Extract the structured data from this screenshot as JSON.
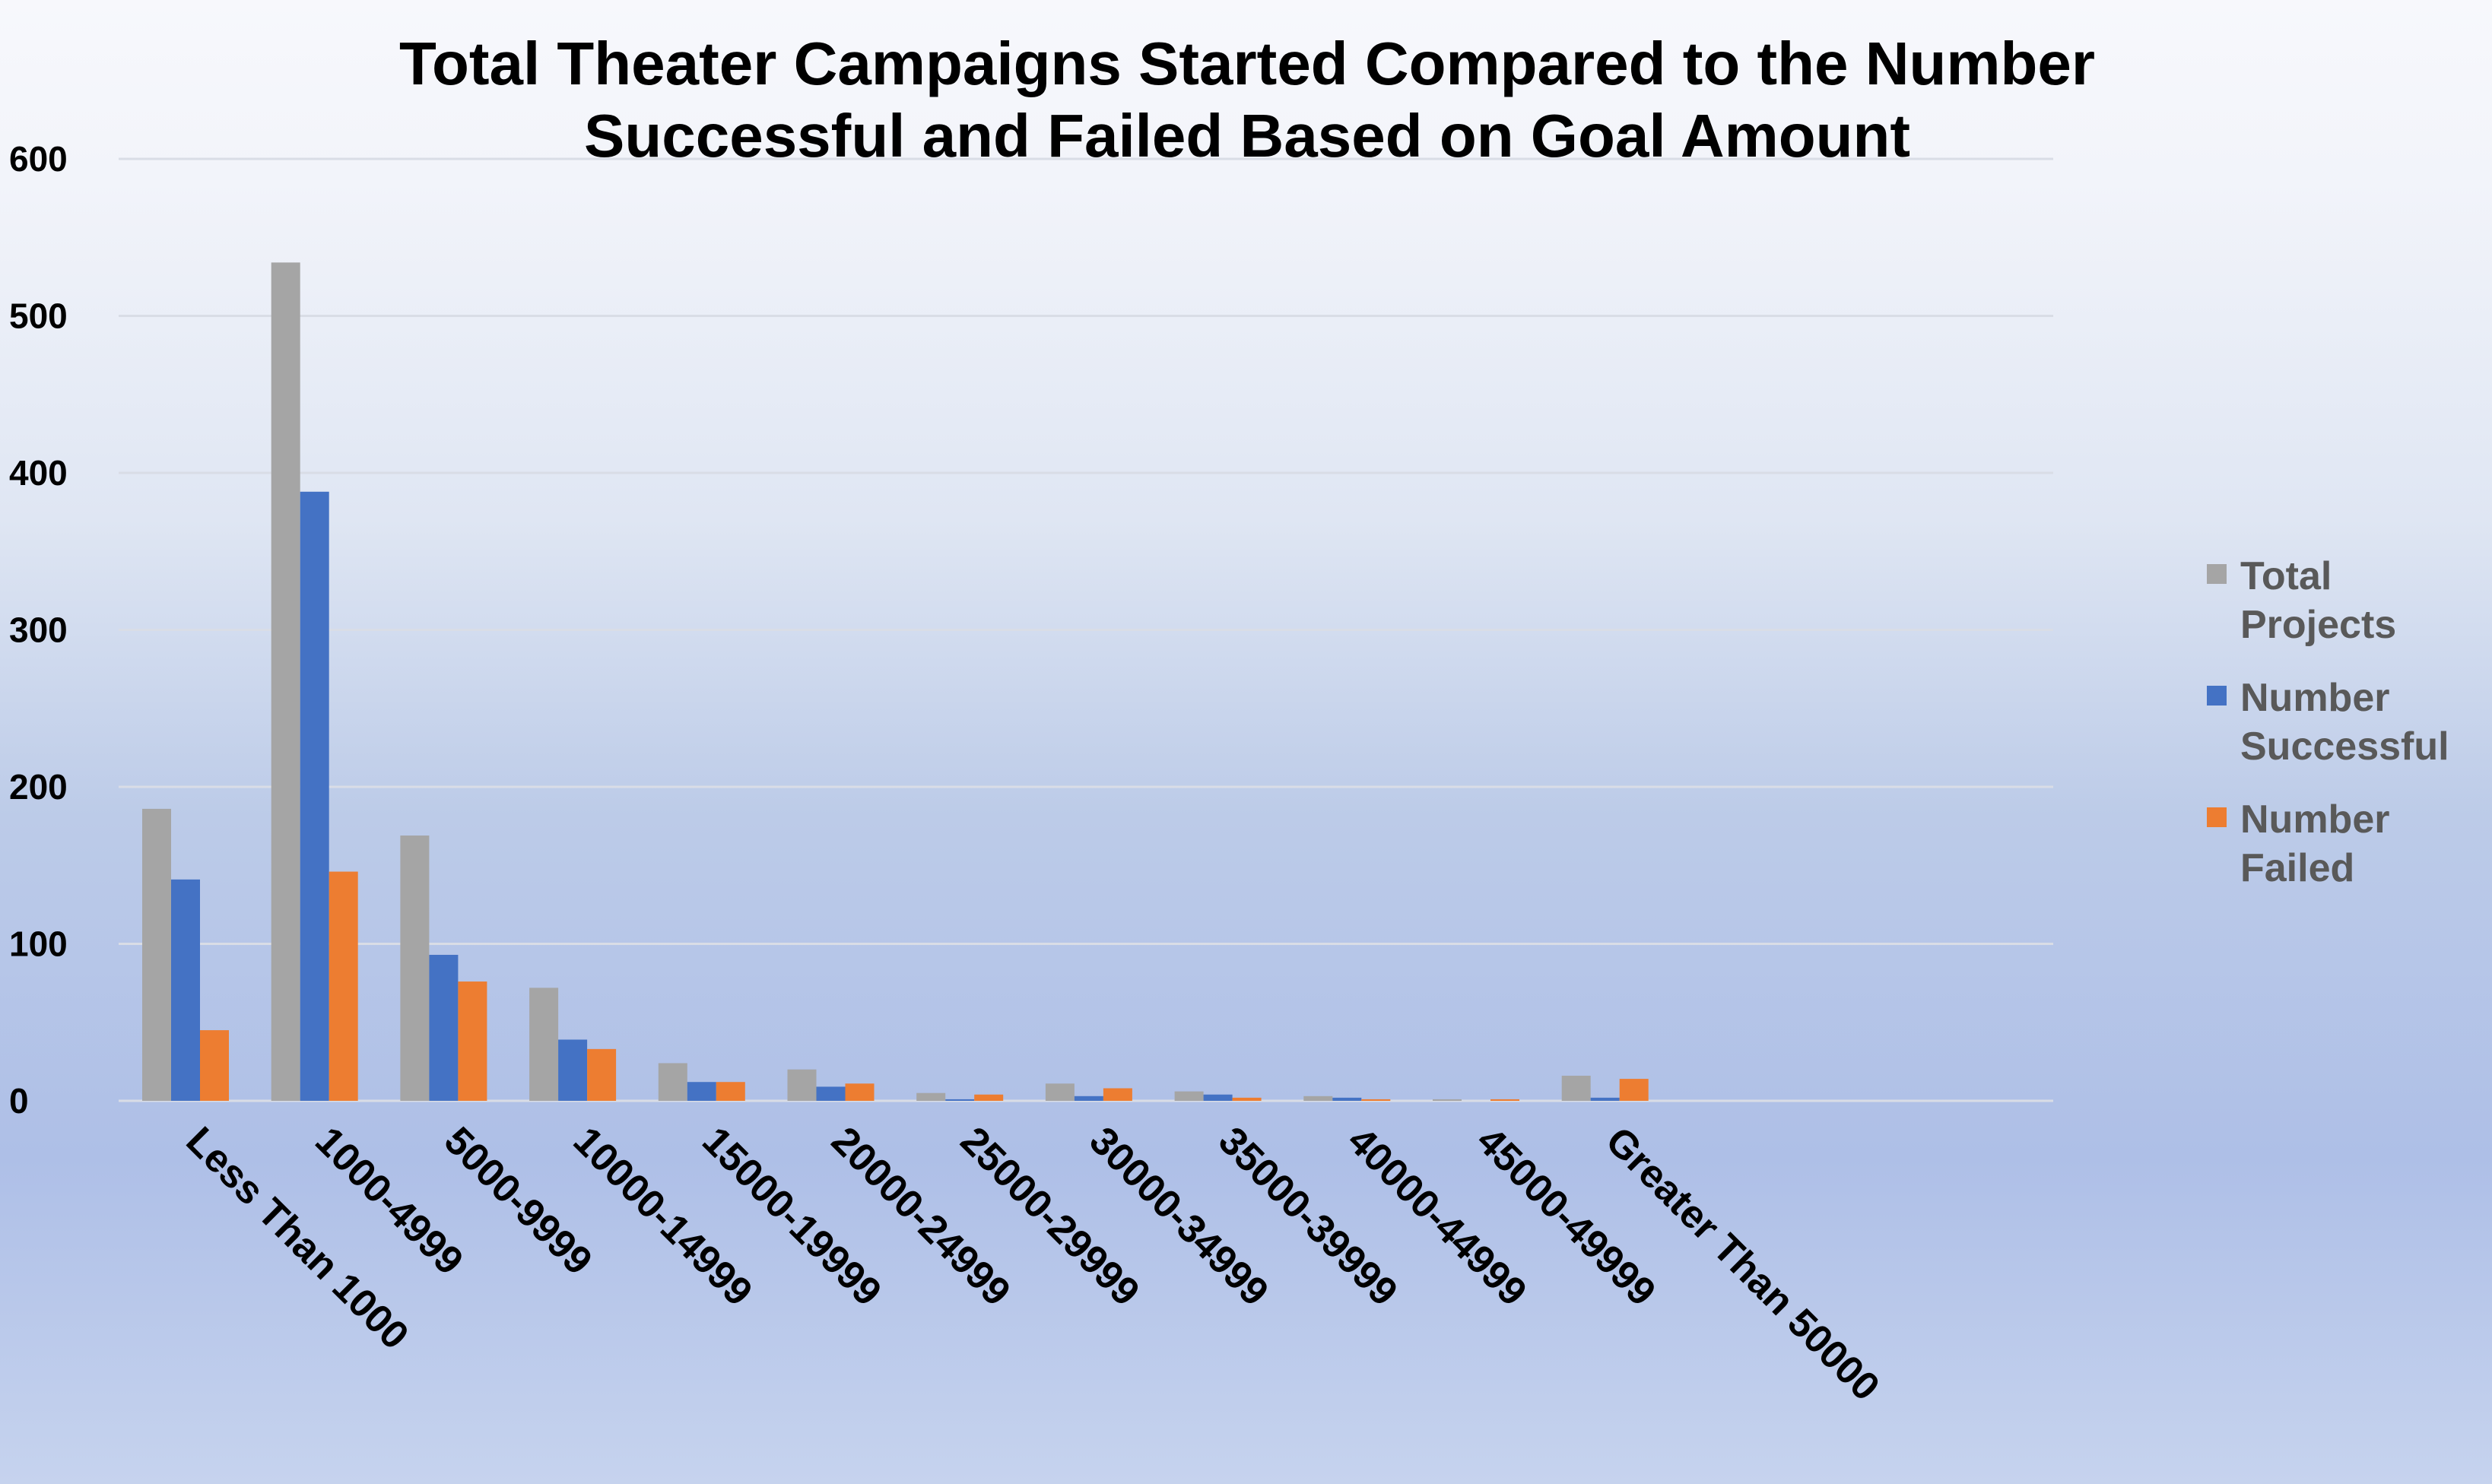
{
  "chart_data": {
    "type": "bar",
    "title_lines": [
      "Total Theater Campaigns Started Compared to the Number",
      "Successful and Failed Based on Goal Amount"
    ],
    "categories": [
      "Less Than 1000",
      "1000-4999",
      "5000-9999",
      "10000-14999",
      "15000-19999",
      "20000-24999",
      "25000-29999",
      "30000-34999",
      "35000-39999",
      "40000-44999",
      "45000-49999",
      "Greater Than 50000"
    ],
    "series": [
      {
        "name": "Total Projects",
        "legend_lines": [
          "Total",
          "Projects"
        ],
        "color": "#a5a5a5",
        "values": [
          186,
          534,
          169,
          72,
          24,
          20,
          5,
          11,
          6,
          3,
          1,
          16
        ]
      },
      {
        "name": "Number Successful",
        "legend_lines": [
          "Number",
          "Successful"
        ],
        "color": "#4472c4",
        "values": [
          141,
          388,
          93,
          39,
          12,
          9,
          1,
          3,
          4,
          2,
          0,
          2
        ]
      },
      {
        "name": "Number Failed",
        "legend_lines": [
          "Number",
          "Failed"
        ],
        "color": "#ed7d31",
        "values": [
          45,
          146,
          76,
          33,
          12,
          11,
          4,
          8,
          2,
          1,
          1,
          14
        ]
      }
    ],
    "yticks": [
      "0",
      "100",
      "200",
      "300",
      "400",
      "500",
      "600"
    ],
    "ylim": [
      0,
      600
    ],
    "xlabel": "",
    "ylabel": "",
    "grid": true,
    "legend_position": "right"
  }
}
